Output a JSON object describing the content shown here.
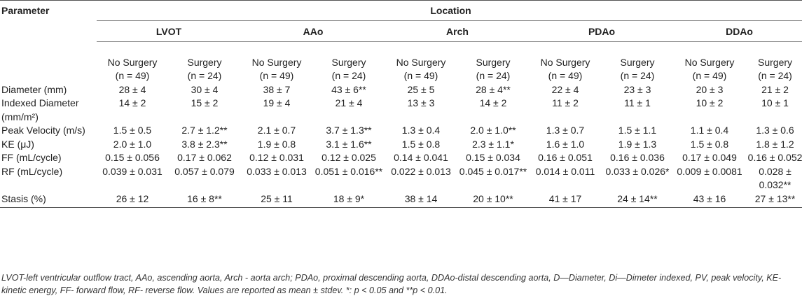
{
  "header": {
    "param_label": "Parameter",
    "location_label": "Location",
    "sites": [
      "LVOT",
      "AAo",
      "Arch",
      "PDAo",
      "DDAo"
    ],
    "groups": [
      {
        "name": "No Surgery",
        "n": "(n = 49)"
      },
      {
        "name": "Surgery",
        "n": "(n = 24)"
      }
    ]
  },
  "rows": [
    {
      "param": "Diameter (mm)",
      "values": [
        "28 ± 4",
        "30 ± 4",
        "38 ± 7",
        "43 ± 6**",
        "25 ± 5",
        "28 ± 4**",
        "22 ± 4",
        "23 ± 3",
        "20 ± 3",
        "21 ± 2"
      ]
    },
    {
      "param": "Indexed Diameter (mm/m²)",
      "values": [
        "14 ± 2",
        "15 ± 2",
        "19 ± 4",
        "21 ± 4",
        "13 ± 3",
        "14 ± 2",
        "11 ± 2",
        "11 ± 1",
        "10 ± 2",
        "10 ± 1"
      ]
    },
    {
      "param": "Peak Velocity (m/s)",
      "values": [
        "1.5 ± 0.5",
        "2.7 ± 1.2**",
        "2.1 ± 0.7",
        "3.7 ± 1.3**",
        "1.3 ± 0.4",
        "2.0 ± 1.0**",
        "1.3 ± 0.7",
        "1.5 ± 1.1",
        "1.1 ± 0.4",
        "1.3 ± 0.6"
      ]
    },
    {
      "param": "KE (μJ)",
      "values": [
        "2.0 ± 1.0",
        "3.8 ± 2.3**",
        "1.9 ± 0.8",
        "3.1 ± 1.6**",
        "1.5 ± 0.8",
        "2.3 ± 1.1*",
        "1.6 ± 1.0",
        "1.9 ± 1.3",
        "1.5 ± 0.8",
        "1.8 ± 1.2"
      ]
    },
    {
      "param": "FF (mL/cycle)",
      "values": [
        "0.15 ± 0.056",
        "0.17 ± 0.062",
        "0.12 ± 0.031",
        "0.12 ± 0.025",
        "0.14 ± 0.041",
        "0.15 ± 0.034",
        "0.16 ± 0.051",
        "0.16 ± 0.036",
        "0.17 ± 0.049",
        "0.16 ± 0.052"
      ]
    },
    {
      "param": "RF (mL/cycle)",
      "values": [
        "0.039 ± 0.031",
        "0.057 ± 0.079",
        "0.033 ± 0.013",
        "0.051 ± 0.016**",
        "0.022 ± 0.013",
        "0.045 ± 0.017**",
        "0.014 ± 0.011",
        "0.033 ± 0.026*",
        "0.009 ± 0.0081",
        "0.028 ± 0.032**"
      ]
    },
    {
      "param": "Stasis (%)",
      "values": [
        "26 ± 12",
        "16 ± 8**",
        "25 ± 11",
        "18 ± 9*",
        "38 ± 14",
        "20 ± 10**",
        "41 ± 17",
        "24 ± 14**",
        "43 ± 16",
        "27 ± 13**"
      ]
    }
  ],
  "footnote": "LVOT-left ventricular outflow tract, AAo, ascending aorta, Arch - aorta arch; PDAo, proximal descending aorta, DDAo-distal descending aorta, D—Diameter, Di—Dimeter indexed, PV, peak velocity, KE-kinetic energy, FF- forward flow, RF- reverse flow. Values are reported as mean ± stdev. *: p < 0.05 and **p < 0.01."
}
